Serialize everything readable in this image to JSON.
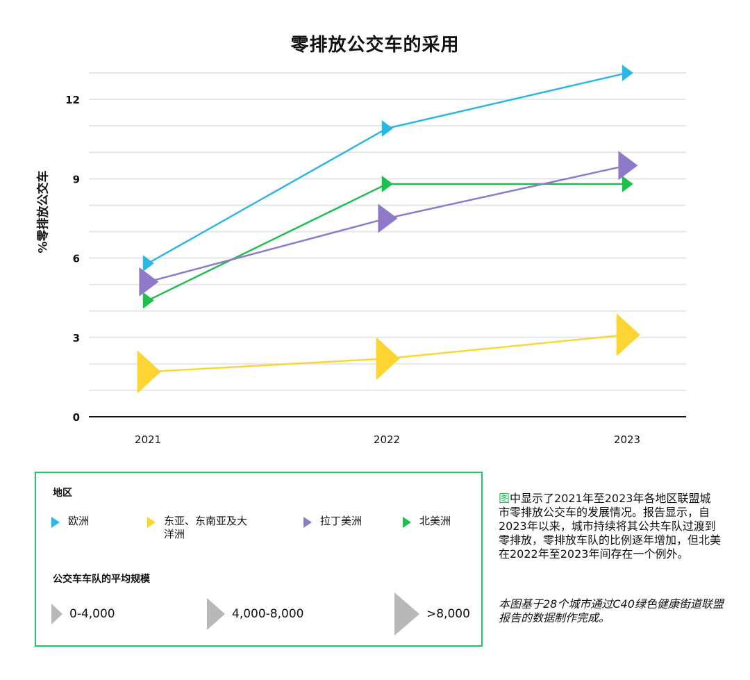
{
  "colors": {
    "europe": "#2bb6e3",
    "east_asia_oceania": "#fcd535",
    "latin_america": "#8f79c9",
    "north_america": "#1fbf4f",
    "axis": "#111111",
    "grid": "#e6e6e6",
    "legend_border": "#22c55e",
    "size_marker": "#b8b8b8"
  },
  "legend": {
    "region_heading": "地区",
    "size_heading": "公交车车队的平均规模",
    "regions": [
      {
        "label_line1": "欧洲",
        "label_line2": ""
      },
      {
        "label_line1": "东亚、东南亚及大",
        "label_line2": "洋洲"
      },
      {
        "label_line1": "拉丁美洲",
        "label_line2": ""
      },
      {
        "label_line1": "北美洲",
        "label_line2": ""
      }
    ],
    "sizes": [
      "0-4,000",
      "4,000-8,000",
      ">8,000"
    ]
  },
  "note": {
    "highlight": "图",
    "text": "中显示了2021年至2023年各地区联盟城市零排放公交车的发展情况。报告显示，自2023年以来，城市持续将其公共车队过渡到零排放，零排放车队的比例逐年增加，但北美在2022年至2023年间存在一个例外。"
  },
  "source_note": "本图基于28个城市通过C40绿色健康街道联盟报告的数据制作完成。",
  "chart_data": {
    "type": "line",
    "title": "零排放公交车的采用",
    "xlabel": "",
    "ylabel": "%零排放公交车",
    "categories": [
      "2021",
      "2022",
      "2023"
    ],
    "ylim": [
      0,
      13
    ],
    "yticks": [
      0,
      3,
      6,
      9,
      12
    ],
    "grid": true,
    "marker": "triangle-right",
    "marker_size_encodes": "公交车车队的平均规模",
    "series": [
      {
        "name": "欧洲",
        "color_key": "europe",
        "values": [
          5.8,
          10.9,
          13.0
        ],
        "sizes": [
          "0-4,000",
          "0-4,000",
          "0-4,000"
        ]
      },
      {
        "name": "北美洲",
        "color_key": "north_america",
        "values": [
          4.4,
          8.8,
          8.8
        ],
        "sizes": [
          "0-4,000",
          "0-4,000",
          "0-4,000"
        ]
      },
      {
        "name": "拉丁美洲",
        "color_key": "latin_america",
        "values": [
          5.1,
          7.5,
          9.5
        ],
        "sizes": [
          "4,000-8,000",
          "4,000-8,000",
          "4,000-8,000"
        ]
      },
      {
        "name": "东亚、东南亚及大洋洲",
        "color_key": "east_asia_oceania",
        "values": [
          1.7,
          2.2,
          3.1
        ],
        "sizes": [
          ">8,000",
          ">8,000",
          ">8,000"
        ]
      }
    ]
  }
}
